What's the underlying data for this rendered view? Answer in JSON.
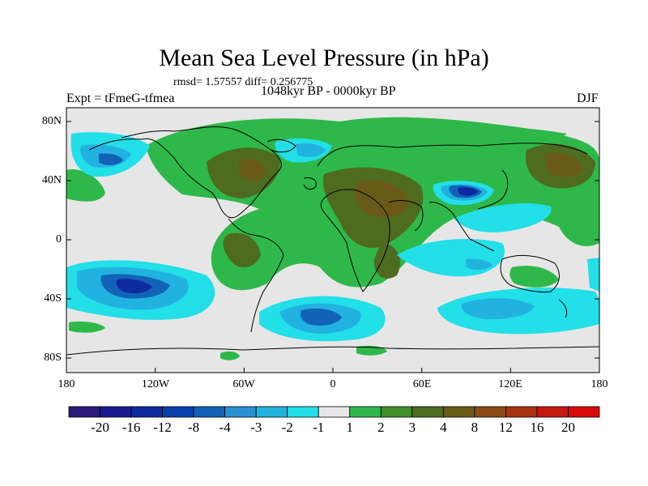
{
  "title": "Mean Sea Level Pressure (in hPa)",
  "stats": "rmsd= 1.57557 diff= 0.256775",
  "expt": "Expt = tFmeG-tfmea",
  "period": "1048kyr BP - 0000kyr BP",
  "season": "DJF",
  "lat_labels": [
    "80N",
    "40N",
    "0",
    "40S",
    "80S"
  ],
  "lon_labels": [
    "180",
    "120W",
    "60W",
    "0",
    "60E",
    "120E",
    "180"
  ],
  "colorbar": {
    "labels": [
      "-20",
      "-16",
      "-12",
      "-8",
      "-4",
      "-3",
      "-2",
      "-1",
      "1",
      "2",
      "3",
      "4",
      "8",
      "12",
      "16",
      "20"
    ],
    "colors": [
      "#2c1a7a",
      "#1a1a8e",
      "#0d2a9e",
      "#0a3fae",
      "#1263b8",
      "#2a8fd0",
      "#22b2e0",
      "#22dfe8",
      "#e6e6e6",
      "#2fb84a",
      "#3f8f2a",
      "#4e6b20",
      "#6a5a18",
      "#8a4a16",
      "#a83312",
      "#c41b10",
      "#d80c0c"
    ]
  },
  "colors": {
    "neutral": "#e6e6e6",
    "light_green": "#2fb84a",
    "dark_green": "#4e6b20",
    "brown": "#6a5a18",
    "cyan": "#22dfe8",
    "light_blue": "#22b2e0",
    "mid_blue": "#1263b8",
    "dark_blue": "#0d2a9e"
  }
}
